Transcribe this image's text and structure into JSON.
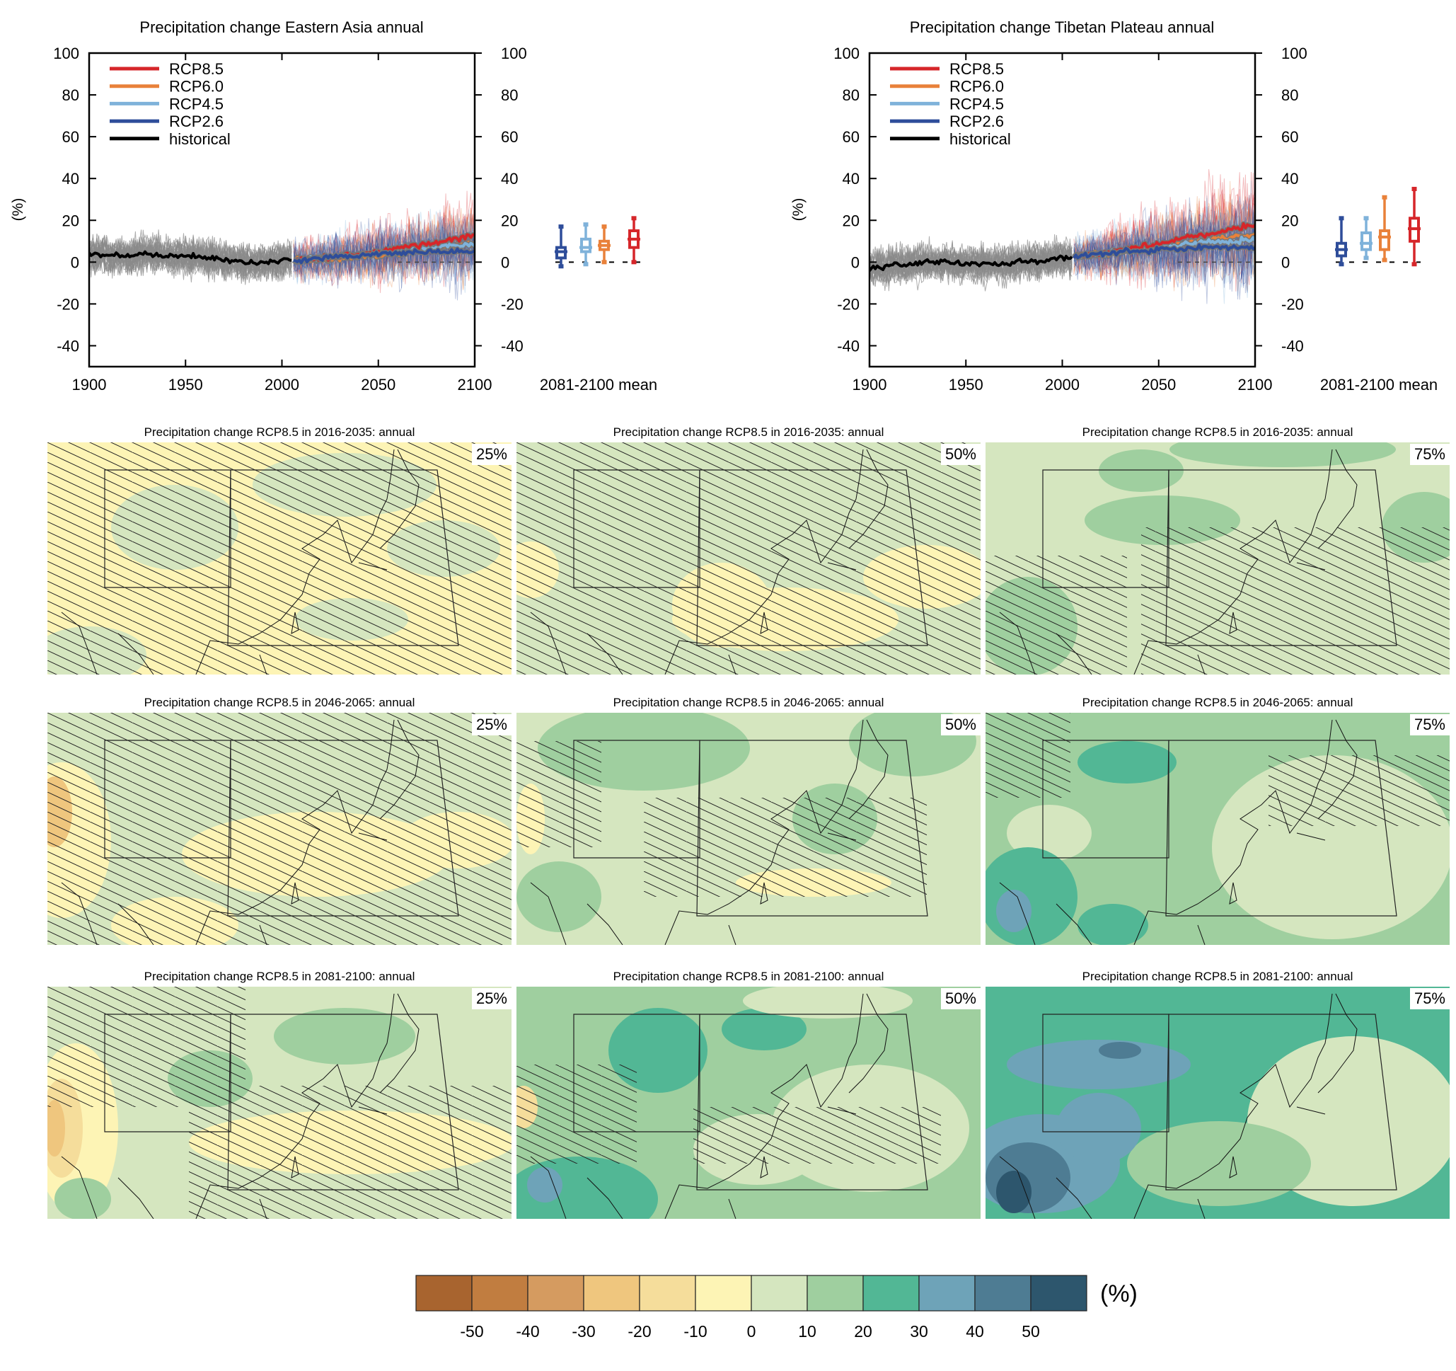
{
  "chart_data": [
    {
      "type": "line",
      "title": "Precipitation change Eastern Asia annual",
      "ylabel": "(%)",
      "xlabel": "",
      "xlim": [
        1900,
        2100
      ],
      "ylim": [
        -50,
        100
      ],
      "xticks": [
        "1900",
        "1950",
        "2000",
        "2050",
        "2100"
      ],
      "yticks": [
        "100",
        "80",
        "60",
        "40",
        "20",
        "0",
        "-20",
        "-40"
      ],
      "legend": [
        "RCP8.5",
        "RCP6.0",
        "RCP4.5",
        "RCP2.6",
        "historical"
      ],
      "legend_position": "top-left",
      "historical": {
        "years_start": 1900,
        "step": 10,
        "values": [
          4,
          3,
          3,
          4,
          3,
          3,
          2,
          1,
          0,
          0,
          1
        ]
      },
      "series": [
        {
          "name": "RCP2.6",
          "color": "#2e4d9a",
          "years_start": 2010,
          "step": 10,
          "values": [
            1,
            2,
            3,
            3,
            4,
            4,
            5,
            5,
            5,
            5
          ]
        },
        {
          "name": "RCP4.5",
          "color": "#7fb2da",
          "years_start": 2010,
          "step": 10,
          "values": [
            1,
            2,
            3,
            4,
            5,
            6,
            7,
            7,
            8,
            8
          ]
        },
        {
          "name": "RCP6.0",
          "color": "#e9813a",
          "years_start": 2010,
          "step": 10,
          "values": [
            1,
            1,
            2,
            3,
            3,
            4,
            6,
            7,
            8,
            9
          ]
        },
        {
          "name": "RCP8.5",
          "color": "#d6262a",
          "years_start": 2010,
          "step": 10,
          "values": [
            1,
            2,
            3,
            4,
            5,
            7,
            8,
            9,
            11,
            13
          ]
        }
      ],
      "boxplot_label": "2081-2100 mean",
      "boxplots": [
        {
          "name": "RCP2.6",
          "min": -2,
          "q1": 2,
          "median": 5,
          "q3": 7,
          "max": 17
        },
        {
          "name": "RCP4.5",
          "min": -1,
          "q1": 5,
          "median": 7,
          "q3": 11,
          "max": 18
        },
        {
          "name": "RCP6.0",
          "min": 0,
          "q1": 6,
          "median": 8,
          "q3": 10,
          "max": 17
        },
        {
          "name": "RCP8.5",
          "min": 0,
          "q1": 7,
          "median": 11,
          "q3": 15,
          "max": 21
        }
      ]
    },
    {
      "type": "line",
      "title": "Precipitation change Tibetan Plateau annual",
      "ylabel": "(%)",
      "xlabel": "",
      "xlim": [
        1900,
        2100
      ],
      "ylim": [
        -50,
        100
      ],
      "xticks": [
        "1900",
        "1950",
        "2000",
        "2050",
        "2100"
      ],
      "yticks": [
        "100",
        "80",
        "60",
        "40",
        "20",
        "0",
        "-20",
        "-40"
      ],
      "legend": [
        "RCP8.5",
        "RCP6.0",
        "RCP4.5",
        "RCP2.6",
        "historical"
      ],
      "legend_position": "top-left",
      "historical": {
        "years_start": 1900,
        "step": 10,
        "values": [
          -3,
          -2,
          -1,
          0,
          0,
          -1,
          -1,
          -1,
          0,
          1,
          2
        ]
      },
      "series": [
        {
          "name": "RCP2.6",
          "color": "#2e4d9a",
          "years_start": 2010,
          "step": 10,
          "values": [
            3,
            4,
            5,
            5,
            6,
            6,
            7,
            7,
            7,
            7
          ]
        },
        {
          "name": "RCP4.5",
          "color": "#7fb2da",
          "years_start": 2010,
          "step": 10,
          "values": [
            3,
            4,
            5,
            6,
            7,
            8,
            9,
            10,
            10,
            11
          ]
        },
        {
          "name": "RCP6.0",
          "color": "#e9813a",
          "years_start": 2010,
          "step": 10,
          "values": [
            3,
            4,
            5,
            6,
            7,
            8,
            10,
            11,
            12,
            13
          ]
        },
        {
          "name": "RCP8.5",
          "color": "#d6262a",
          "years_start": 2010,
          "step": 10,
          "values": [
            3,
            4,
            6,
            7,
            9,
            11,
            13,
            14,
            16,
            18
          ]
        }
      ],
      "boxplot_label": "2081-2100 mean",
      "boxplots": [
        {
          "name": "RCP2.6",
          "min": -1,
          "q1": 3,
          "median": 6,
          "q3": 9,
          "max": 21
        },
        {
          "name": "RCP4.5",
          "min": 2,
          "q1": 6,
          "median": 9,
          "q3": 14,
          "max": 21
        },
        {
          "name": "RCP6.0",
          "min": 1,
          "q1": 6,
          "median": 12,
          "q3": 15,
          "max": 31
        },
        {
          "name": "RCP8.5",
          "min": -1,
          "q1": 10,
          "median": 16,
          "q3": 21,
          "max": 35
        }
      ]
    }
  ],
  "maps": [
    {
      "title": "Precipitation change RCP8.5 in 2016-2035: annual",
      "percentile": "25%"
    },
    {
      "title": "Precipitation change RCP8.5 in 2016-2035: annual",
      "percentile": "50%"
    },
    {
      "title": "Precipitation change RCP8.5 in 2016-2035: annual",
      "percentile": "75%"
    },
    {
      "title": "Precipitation change RCP8.5 in 2046-2065: annual",
      "percentile": "25%"
    },
    {
      "title": "Precipitation change RCP8.5 in 2046-2065: annual",
      "percentile": "50%"
    },
    {
      "title": "Precipitation change RCP8.5 in 2046-2065: annual",
      "percentile": "75%"
    },
    {
      "title": "Precipitation change RCP8.5 in 2081-2100: annual",
      "percentile": "25%"
    },
    {
      "title": "Precipitation change RCP8.5 in 2081-2100: annual",
      "percentile": "50%"
    },
    {
      "title": "Precipitation change RCP8.5 in 2081-2100: annual",
      "percentile": "75%"
    }
  ],
  "colorbar": {
    "unit": "(%)",
    "colors": [
      "#a8642f",
      "#c17d40",
      "#d59b60",
      "#efc67e",
      "#f5dd9b",
      "#fdf4b5",
      "#d5e6bf",
      "#9fcf9f",
      "#52b795",
      "#6ea3b8",
      "#4e7c93",
      "#2d566d"
    ],
    "ticks": [
      "-50",
      "-40",
      "-30",
      "-20",
      "-10",
      "0",
      "10",
      "20",
      "30",
      "40",
      "50"
    ]
  }
}
